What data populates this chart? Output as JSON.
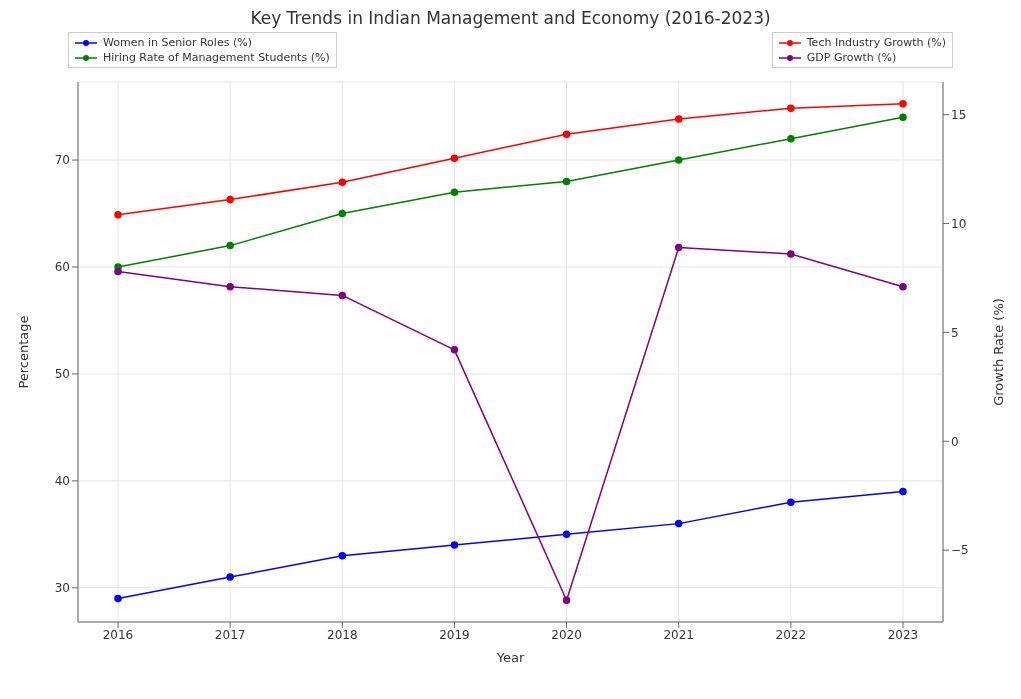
{
  "chart_data": {
    "type": "line",
    "title": "Key Trends in Indian Management and Economy (2016-2023)",
    "xlabel": "Year",
    "ylabel": "Percentage",
    "y2label": "Growth Rate (%)",
    "categories": [
      "2016",
      "2017",
      "2018",
      "2019",
      "2020",
      "2021",
      "2022",
      "2023"
    ],
    "series": [
      {
        "name": "Women in Senior Roles (%)",
        "color": "#0000ff",
        "values": [
          29,
          31,
          33,
          34,
          35,
          36,
          38,
          39
        ]
      },
      {
        "name": "Hiring Rate of Management Students (%)",
        "color": "#008000",
        "values": [
          60,
          62,
          65,
          67,
          68,
          70,
          72,
          74
        ]
      },
      {
        "name": "Tech Industry Growth (%)",
        "color": "#ff0000",
        "axis": "y2",
        "values": [
          10.4,
          11.1,
          11.9,
          13.0,
          14.1,
          14.8,
          15.3,
          15.5
        ]
      },
      {
        "name": "GDP Growth (%)",
        "color": "#800080",
        "axis": "y2",
        "values": [
          7.8,
          7.1,
          6.7,
          4.2,
          -7.3,
          8.9,
          8.6,
          7.1
        ]
      }
    ],
    "ylim": [
      26.8,
      77.3
    ],
    "yticks": [
      30,
      40,
      50,
      60,
      70
    ],
    "y2lim": [
      -8.3,
      16.5
    ],
    "y2ticks": [
      -5,
      0,
      5,
      10,
      15
    ],
    "grid": true,
    "legend": "top",
    "marker": "circle",
    "line_style": "solid"
  }
}
